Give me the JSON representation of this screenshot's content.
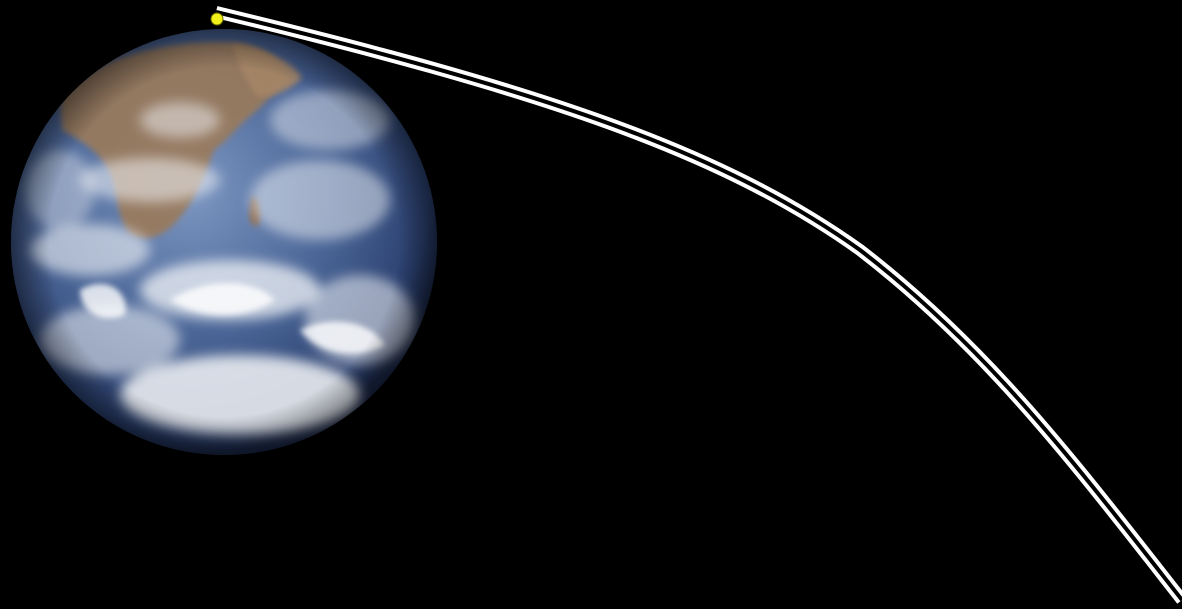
{
  "scene": {
    "subject": "earth-globe",
    "marker": "position-marker",
    "path": "trajectory"
  },
  "colors": {
    "background": "#000000",
    "ocean_deep": "#1d3560",
    "ocean_light": "#6d8ab8",
    "land": "#9a7a5c",
    "cloud": "#f2f4f7",
    "marker_fill": "#f2f21a",
    "marker_stroke": "#6a6a00",
    "trajectory_outer": "#ffffff",
    "trajectory_gap": "#000000"
  }
}
